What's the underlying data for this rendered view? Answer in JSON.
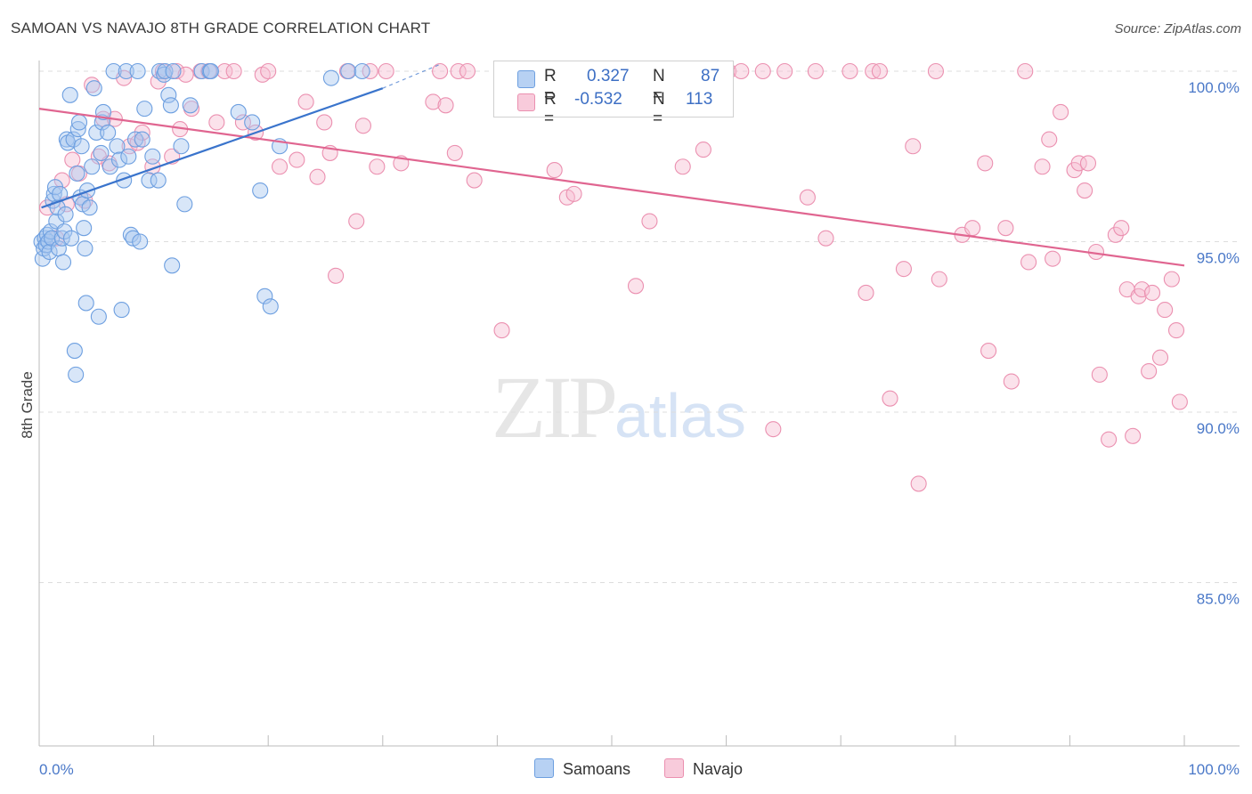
{
  "title": "SAMOAN VS NAVAJO 8TH GRADE CORRELATION CHART",
  "source": "Source: ZipAtlas.com",
  "watermark": {
    "zip": "ZIP",
    "atlas": "atlas"
  },
  "legend": {
    "samoans": {
      "r_label": "R =",
      "r_value": "0.327",
      "n_label": "N =",
      "n_value": "87"
    },
    "navajo": {
      "r_label": "R =",
      "r_value": "-0.532",
      "n_label": "N =",
      "n_value": "113"
    }
  },
  "bottom_legend": {
    "samoans": "Samoans",
    "navajo": "Navajo"
  },
  "colors": {
    "samoans_fill": "#a9c8f0",
    "samoans_stroke": "#6d9fe0",
    "samoans_line": "#3a74cc",
    "navajo_fill": "#f6bfd2",
    "navajo_stroke": "#eb90b0",
    "navajo_line": "#e06590",
    "tick_text": "#4a78c8",
    "grid": "#dddddd"
  },
  "chart_data": {
    "type": "scatter",
    "title": "SAMOAN VS NAVAJO 8TH GRADE CORRELATION CHART",
    "xlabel": "",
    "ylabel": "8th Grade",
    "xlim": [
      0,
      100
    ],
    "ylim": [
      80.0,
      100.8
    ],
    "x_tick_labels": [
      "0.0%",
      "100.0%"
    ],
    "y_ticks": [
      85.0,
      90.0,
      95.0,
      100.0
    ],
    "y_tick_labels": [
      "85.0%",
      "90.0%",
      "95.0%",
      "100.0%"
    ],
    "grid": true,
    "legend_position": "top-center",
    "series": [
      {
        "name": "Samoans",
        "trend": {
          "x": [
            0.2,
            30.0
          ],
          "y": [
            96.0,
            99.5
          ],
          "dashed_to": [
            35.0,
            100.2
          ]
        },
        "points": [
          [
            0.2,
            95.0
          ],
          [
            0.3,
            94.5
          ],
          [
            0.4,
            94.8
          ],
          [
            0.5,
            95.1
          ],
          [
            0.6,
            94.9
          ],
          [
            0.7,
            95.2
          ],
          [
            0.8,
            95.0
          ],
          [
            0.9,
            94.7
          ],
          [
            1.0,
            95.3
          ],
          [
            1.1,
            95.1
          ],
          [
            1.2,
            96.2
          ],
          [
            1.3,
            96.4
          ],
          [
            1.4,
            96.6
          ],
          [
            1.5,
            95.6
          ],
          [
            1.6,
            96.0
          ],
          [
            1.7,
            94.8
          ],
          [
            1.8,
            96.4
          ],
          [
            2.0,
            95.1
          ],
          [
            2.1,
            94.4
          ],
          [
            2.2,
            95.3
          ],
          [
            2.3,
            95.8
          ],
          [
            2.4,
            98.0
          ],
          [
            2.5,
            97.9
          ],
          [
            2.7,
            99.3
          ],
          [
            2.8,
            95.1
          ],
          [
            3.0,
            98.0
          ],
          [
            3.1,
            91.8
          ],
          [
            3.2,
            91.1
          ],
          [
            3.3,
            97.0
          ],
          [
            3.4,
            98.3
          ],
          [
            3.5,
            98.5
          ],
          [
            3.6,
            96.3
          ],
          [
            3.7,
            97.8
          ],
          [
            3.8,
            96.1
          ],
          [
            3.9,
            95.4
          ],
          [
            4.0,
            94.8
          ],
          [
            4.1,
            93.2
          ],
          [
            4.2,
            96.5
          ],
          [
            4.4,
            96.0
          ],
          [
            4.6,
            97.2
          ],
          [
            4.8,
            99.5
          ],
          [
            5.0,
            98.2
          ],
          [
            5.2,
            92.8
          ],
          [
            5.4,
            97.6
          ],
          [
            5.5,
            98.5
          ],
          [
            5.6,
            98.8
          ],
          [
            6.0,
            98.2
          ],
          [
            6.2,
            97.2
          ],
          [
            6.5,
            100.0
          ],
          [
            6.8,
            97.8
          ],
          [
            7.0,
            97.4
          ],
          [
            7.2,
            93.0
          ],
          [
            7.4,
            96.8
          ],
          [
            7.6,
            100.0
          ],
          [
            7.8,
            97.5
          ],
          [
            8.0,
            95.2
          ],
          [
            8.2,
            95.1
          ],
          [
            8.4,
            98.0
          ],
          [
            8.6,
            100.0
          ],
          [
            8.8,
            95.0
          ],
          [
            9.0,
            98.0
          ],
          [
            9.2,
            98.9
          ],
          [
            9.6,
            96.8
          ],
          [
            9.9,
            97.5
          ],
          [
            10.4,
            96.8
          ],
          [
            10.5,
            100.0
          ],
          [
            10.9,
            99.9
          ],
          [
            11.0,
            100.0
          ],
          [
            11.3,
            99.3
          ],
          [
            11.5,
            99.0
          ],
          [
            11.6,
            94.3
          ],
          [
            11.7,
            100.0
          ],
          [
            12.4,
            97.8
          ],
          [
            12.7,
            96.1
          ],
          [
            13.2,
            99.0
          ],
          [
            14.2,
            100.0
          ],
          [
            14.9,
            100.0
          ],
          [
            15.0,
            100.0
          ],
          [
            17.4,
            98.8
          ],
          [
            18.6,
            98.5
          ],
          [
            19.3,
            96.5
          ],
          [
            19.7,
            93.4
          ],
          [
            20.2,
            93.1
          ],
          [
            21.0,
            97.8
          ],
          [
            25.5,
            99.8
          ],
          [
            27.0,
            100.0
          ],
          [
            28.2,
            100.0
          ]
        ]
      },
      {
        "name": "Navajo",
        "trend": {
          "x": [
            0.0,
            100.0
          ],
          "y": [
            98.9,
            94.3
          ]
        },
        "points": [
          [
            0.7,
            96.0
          ],
          [
            1.5,
            95.1
          ],
          [
            2.0,
            96.8
          ],
          [
            2.4,
            96.1
          ],
          [
            2.9,
            97.4
          ],
          [
            3.5,
            97.0
          ],
          [
            4.0,
            96.2
          ],
          [
            4.6,
            99.6
          ],
          [
            5.2,
            97.5
          ],
          [
            5.6,
            98.6
          ],
          [
            6.1,
            97.3
          ],
          [
            6.6,
            98.6
          ],
          [
            7.4,
            99.8
          ],
          [
            7.9,
            97.8
          ],
          [
            8.6,
            97.9
          ],
          [
            9.0,
            98.2
          ],
          [
            9.9,
            97.2
          ],
          [
            10.4,
            99.7
          ],
          [
            10.8,
            100.0
          ],
          [
            11.6,
            97.5
          ],
          [
            12.0,
            100.0
          ],
          [
            12.3,
            98.3
          ],
          [
            12.8,
            99.9
          ],
          [
            13.3,
            98.9
          ],
          [
            14.1,
            100.0
          ],
          [
            14.8,
            100.0
          ],
          [
            15.5,
            98.5
          ],
          [
            16.2,
            100.0
          ],
          [
            17.0,
            100.0
          ],
          [
            17.8,
            98.5
          ],
          [
            18.9,
            98.2
          ],
          [
            19.5,
            99.9
          ],
          [
            20.0,
            100.0
          ],
          [
            21.0,
            97.2
          ],
          [
            22.5,
            97.4
          ],
          [
            23.3,
            99.1
          ],
          [
            24.3,
            96.9
          ],
          [
            24.9,
            98.5
          ],
          [
            25.4,
            97.6
          ],
          [
            25.9,
            94.0
          ],
          [
            26.9,
            100.0
          ],
          [
            27.7,
            95.6
          ],
          [
            28.3,
            98.4
          ],
          [
            28.9,
            100.0
          ],
          [
            29.5,
            97.2
          ],
          [
            30.3,
            100.0
          ],
          [
            31.6,
            97.3
          ],
          [
            34.4,
            99.1
          ],
          [
            35.0,
            100.0
          ],
          [
            35.5,
            99.0
          ],
          [
            36.3,
            97.6
          ],
          [
            36.6,
            100.0
          ],
          [
            37.4,
            100.0
          ],
          [
            38.0,
            96.8
          ],
          [
            40.4,
            92.4
          ],
          [
            41.3,
            99.9
          ],
          [
            45.0,
            97.1
          ],
          [
            46.1,
            96.3
          ],
          [
            46.7,
            96.4
          ],
          [
            48.3,
            100.0
          ],
          [
            52.1,
            93.7
          ],
          [
            53.3,
            95.6
          ],
          [
            55.5,
            100.0
          ],
          [
            56.2,
            97.2
          ],
          [
            58.0,
            97.7
          ],
          [
            60.2,
            100.0
          ],
          [
            61.3,
            100.0
          ],
          [
            63.2,
            100.0
          ],
          [
            64.1,
            89.5
          ],
          [
            65.1,
            100.0
          ],
          [
            67.1,
            96.3
          ],
          [
            67.8,
            100.0
          ],
          [
            68.7,
            95.1
          ],
          [
            70.8,
            100.0
          ],
          [
            72.2,
            93.5
          ],
          [
            72.8,
            100.0
          ],
          [
            73.4,
            100.0
          ],
          [
            74.3,
            90.4
          ],
          [
            75.5,
            94.2
          ],
          [
            76.3,
            97.8
          ],
          [
            76.8,
            87.9
          ],
          [
            78.3,
            100.0
          ],
          [
            78.6,
            93.9
          ],
          [
            80.6,
            95.2
          ],
          [
            81.5,
            95.4
          ],
          [
            82.6,
            97.3
          ],
          [
            82.9,
            91.8
          ],
          [
            84.4,
            95.4
          ],
          [
            84.9,
            90.9
          ],
          [
            86.1,
            100.0
          ],
          [
            86.4,
            94.4
          ],
          [
            87.6,
            97.2
          ],
          [
            88.2,
            98.0
          ],
          [
            88.5,
            94.5
          ],
          [
            89.2,
            98.8
          ],
          [
            90.4,
            97.1
          ],
          [
            90.8,
            97.3
          ],
          [
            91.3,
            96.5
          ],
          [
            91.6,
            97.3
          ],
          [
            92.3,
            94.7
          ],
          [
            92.6,
            91.1
          ],
          [
            93.4,
            89.2
          ],
          [
            94.0,
            95.2
          ],
          [
            94.5,
            95.4
          ],
          [
            95.0,
            93.6
          ],
          [
            95.5,
            89.3
          ],
          [
            96.0,
            93.4
          ],
          [
            96.3,
            93.6
          ],
          [
            96.9,
            91.2
          ],
          [
            97.2,
            93.5
          ],
          [
            97.9,
            91.6
          ],
          [
            98.3,
            93.0
          ],
          [
            98.9,
            93.9
          ],
          [
            99.3,
            92.4
          ],
          [
            99.6,
            90.3
          ]
        ]
      }
    ]
  }
}
